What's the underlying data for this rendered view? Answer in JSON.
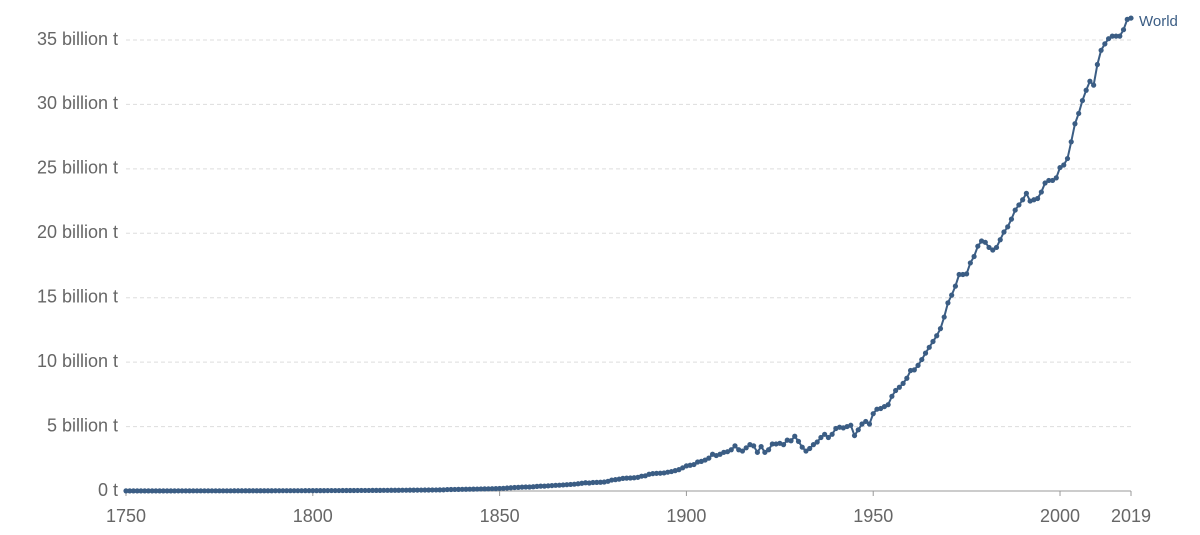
{
  "chart_data": {
    "type": "line",
    "x": [
      1750,
      1751,
      1752,
      1753,
      1754,
      1755,
      1756,
      1757,
      1758,
      1759,
      1760,
      1761,
      1762,
      1763,
      1764,
      1765,
      1766,
      1767,
      1768,
      1769,
      1770,
      1771,
      1772,
      1773,
      1774,
      1775,
      1776,
      1777,
      1778,
      1779,
      1780,
      1781,
      1782,
      1783,
      1784,
      1785,
      1786,
      1787,
      1788,
      1789,
      1790,
      1791,
      1792,
      1793,
      1794,
      1795,
      1796,
      1797,
      1798,
      1799,
      1800,
      1801,
      1802,
      1803,
      1804,
      1805,
      1806,
      1807,
      1808,
      1809,
      1810,
      1811,
      1812,
      1813,
      1814,
      1815,
      1816,
      1817,
      1818,
      1819,
      1820,
      1821,
      1822,
      1823,
      1824,
      1825,
      1826,
      1827,
      1828,
      1829,
      1830,
      1831,
      1832,
      1833,
      1834,
      1835,
      1836,
      1837,
      1838,
      1839,
      1840,
      1841,
      1842,
      1843,
      1844,
      1845,
      1846,
      1847,
      1848,
      1849,
      1850,
      1851,
      1852,
      1853,
      1854,
      1855,
      1856,
      1857,
      1858,
      1859,
      1860,
      1861,
      1862,
      1863,
      1864,
      1865,
      1866,
      1867,
      1868,
      1869,
      1870,
      1871,
      1872,
      1873,
      1874,
      1875,
      1876,
      1877,
      1878,
      1879,
      1880,
      1881,
      1882,
      1883,
      1884,
      1885,
      1886,
      1887,
      1888,
      1889,
      1890,
      1891,
      1892,
      1893,
      1894,
      1895,
      1896,
      1897,
      1898,
      1899,
      1900,
      1901,
      1902,
      1903,
      1904,
      1905,
      1906,
      1907,
      1908,
      1909,
      1910,
      1911,
      1912,
      1913,
      1914,
      1915,
      1916,
      1917,
      1918,
      1919,
      1920,
      1921,
      1922,
      1923,
      1924,
      1925,
      1926,
      1927,
      1928,
      1929,
      1930,
      1931,
      1932,
      1933,
      1934,
      1935,
      1936,
      1937,
      1938,
      1939,
      1940,
      1941,
      1942,
      1943,
      1944,
      1945,
      1946,
      1947,
      1948,
      1949,
      1950,
      1951,
      1952,
      1953,
      1954,
      1955,
      1956,
      1957,
      1958,
      1959,
      1960,
      1961,
      1962,
      1963,
      1964,
      1965,
      1966,
      1967,
      1968,
      1969,
      1970,
      1971,
      1972,
      1973,
      1974,
      1975,
      1976,
      1977,
      1978,
      1979,
      1980,
      1981,
      1982,
      1983,
      1984,
      1985,
      1986,
      1987,
      1988,
      1989,
      1990,
      1991,
      1992,
      1993,
      1994,
      1995,
      1996,
      1997,
      1998,
      1999,
      2000,
      2001,
      2002,
      2003,
      2004,
      2005,
      2006,
      2007,
      2008,
      2009,
      2010,
      2011,
      2012,
      2013,
      2014,
      2015,
      2016,
      2017,
      2018,
      2019
    ],
    "series": [
      {
        "name": "World",
        "color": "#3b5d84",
        "values": [
          0.009,
          0.009,
          0.009,
          0.009,
          0.01,
          0.01,
          0.01,
          0.01,
          0.01,
          0.01,
          0.011,
          0.011,
          0.011,
          0.011,
          0.012,
          0.012,
          0.012,
          0.012,
          0.013,
          0.013,
          0.013,
          0.014,
          0.014,
          0.014,
          0.015,
          0.015,
          0.015,
          0.016,
          0.016,
          0.017,
          0.017,
          0.017,
          0.018,
          0.018,
          0.019,
          0.019,
          0.02,
          0.02,
          0.021,
          0.021,
          0.022,
          0.022,
          0.023,
          0.024,
          0.024,
          0.025,
          0.026,
          0.026,
          0.027,
          0.027,
          0.028,
          0.029,
          0.03,
          0.031,
          0.032,
          0.033,
          0.034,
          0.035,
          0.036,
          0.037,
          0.038,
          0.04,
          0.041,
          0.042,
          0.044,
          0.045,
          0.047,
          0.048,
          0.05,
          0.052,
          0.054,
          0.056,
          0.058,
          0.06,
          0.062,
          0.064,
          0.066,
          0.068,
          0.07,
          0.072,
          0.075,
          0.078,
          0.08,
          0.083,
          0.086,
          0.09,
          0.11,
          0.115,
          0.12,
          0.125,
          0.13,
          0.135,
          0.14,
          0.145,
          0.15,
          0.16,
          0.165,
          0.17,
          0.18,
          0.185,
          0.197,
          0.21,
          0.23,
          0.25,
          0.27,
          0.28,
          0.3,
          0.31,
          0.31,
          0.33,
          0.36,
          0.38,
          0.38,
          0.4,
          0.42,
          0.44,
          0.45,
          0.47,
          0.49,
          0.51,
          0.53,
          0.56,
          0.6,
          0.64,
          0.62,
          0.66,
          0.67,
          0.68,
          0.7,
          0.75,
          0.85,
          0.88,
          0.92,
          0.98,
          1.0,
          1.01,
          1.03,
          1.06,
          1.15,
          1.18,
          1.3,
          1.35,
          1.37,
          1.38,
          1.4,
          1.46,
          1.51,
          1.58,
          1.66,
          1.8,
          1.95,
          2.0,
          2.05,
          2.25,
          2.3,
          2.4,
          2.55,
          2.85,
          2.75,
          2.85,
          3.0,
          3.05,
          3.2,
          3.5,
          3.2,
          3.1,
          3.35,
          3.6,
          3.5,
          3.0,
          3.45,
          3.0,
          3.2,
          3.65,
          3.65,
          3.7,
          3.6,
          3.95,
          3.9,
          4.25,
          3.85,
          3.4,
          3.1,
          3.3,
          3.6,
          3.8,
          4.15,
          4.4,
          4.15,
          4.4,
          4.85,
          4.95,
          4.9,
          5.0,
          5.1,
          4.3,
          4.75,
          5.2,
          5.4,
          5.2,
          6.0,
          6.35,
          6.4,
          6.55,
          6.7,
          7.35,
          7.8,
          8.05,
          8.35,
          8.75,
          9.35,
          9.4,
          9.75,
          10.2,
          10.7,
          11.15,
          11.6,
          12.05,
          12.6,
          13.5,
          14.6,
          15.2,
          15.9,
          16.8,
          16.8,
          16.85,
          17.7,
          18.2,
          19.0,
          19.4,
          19.3,
          18.9,
          18.7,
          18.9,
          19.5,
          20.1,
          20.5,
          21.1,
          21.8,
          22.2,
          22.6,
          23.1,
          22.5,
          22.6,
          22.7,
          23.2,
          23.9,
          24.1,
          24.1,
          24.3,
          25.1,
          25.3,
          25.8,
          27.1,
          28.5,
          29.3,
          30.3,
          31.1,
          31.8,
          31.5,
          33.1,
          34.2,
          34.7,
          35.1,
          35.3,
          35.3,
          35.3,
          35.8,
          36.6,
          36.7
        ]
      }
    ],
    "xlim": [
      1750,
      2019
    ],
    "xticks": [
      1750,
      1800,
      1850,
      1900,
      1950,
      2000,
      2019
    ],
    "ylim": [
      0,
      35
    ],
    "yticks": [
      {
        "value": 0,
        "label": "0 t"
      },
      {
        "value": 5,
        "label": "5 billion t"
      },
      {
        "value": 10,
        "label": "10 billion t"
      },
      {
        "value": 15,
        "label": "15 billion t"
      },
      {
        "value": 20,
        "label": "20 billion t"
      },
      {
        "value": 25,
        "label": "25 billion t"
      },
      {
        "value": 30,
        "label": "30 billion t"
      },
      {
        "value": 35,
        "label": "35 billion t"
      }
    ],
    "grid": true
  }
}
